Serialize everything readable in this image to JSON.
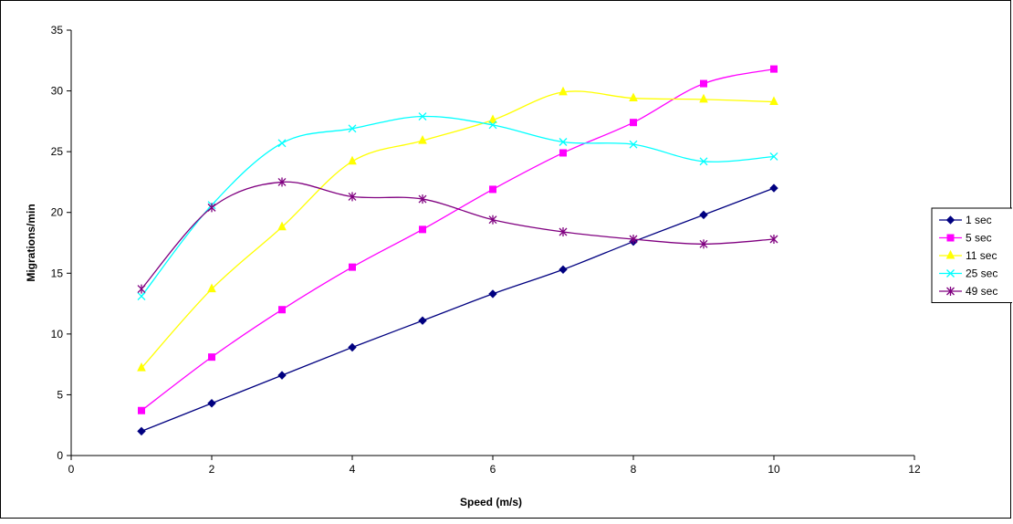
{
  "chart_data": {
    "type": "line",
    "title": "",
    "xlabel": "Speed (m/s)",
    "ylabel": "Migrations/min",
    "xlim": [
      0,
      12
    ],
    "ylim": [
      0,
      35
    ],
    "xticks": [
      0,
      2,
      4,
      6,
      8,
      10,
      12
    ],
    "yticks": [
      0,
      5,
      10,
      15,
      20,
      25,
      30,
      35
    ],
    "grid": false,
    "smoothed": true,
    "legend_position": "right",
    "x": [
      1,
      2,
      3,
      4,
      5,
      6,
      7,
      8,
      9,
      10
    ],
    "series": [
      {
        "name": "1 sec",
        "color": "#000080",
        "marker": "diamond",
        "values": [
          2.0,
          4.3,
          6.6,
          8.9,
          11.1,
          13.3,
          15.3,
          17.6,
          19.8,
          22.0
        ]
      },
      {
        "name": "5 sec",
        "color": "#FF00FF",
        "marker": "square",
        "values": [
          3.7,
          8.1,
          12.0,
          15.5,
          18.6,
          21.9,
          24.9,
          27.4,
          30.6,
          31.8
        ]
      },
      {
        "name": "11 sec",
        "color": "#FFFF00",
        "marker": "triangle",
        "values": [
          7.2,
          13.7,
          18.8,
          24.2,
          25.9,
          27.6,
          29.9,
          29.4,
          29.3,
          29.1
        ]
      },
      {
        "name": "25 sec",
        "color": "#00FFFF",
        "marker": "x",
        "values": [
          13.1,
          20.6,
          25.7,
          26.9,
          27.9,
          27.2,
          25.8,
          25.6,
          24.2,
          24.6
        ]
      },
      {
        "name": "49 sec",
        "color": "#800080",
        "marker": "star",
        "values": [
          13.7,
          20.4,
          22.5,
          21.3,
          21.1,
          19.4,
          18.4,
          17.8,
          17.4,
          17.8
        ]
      }
    ]
  }
}
